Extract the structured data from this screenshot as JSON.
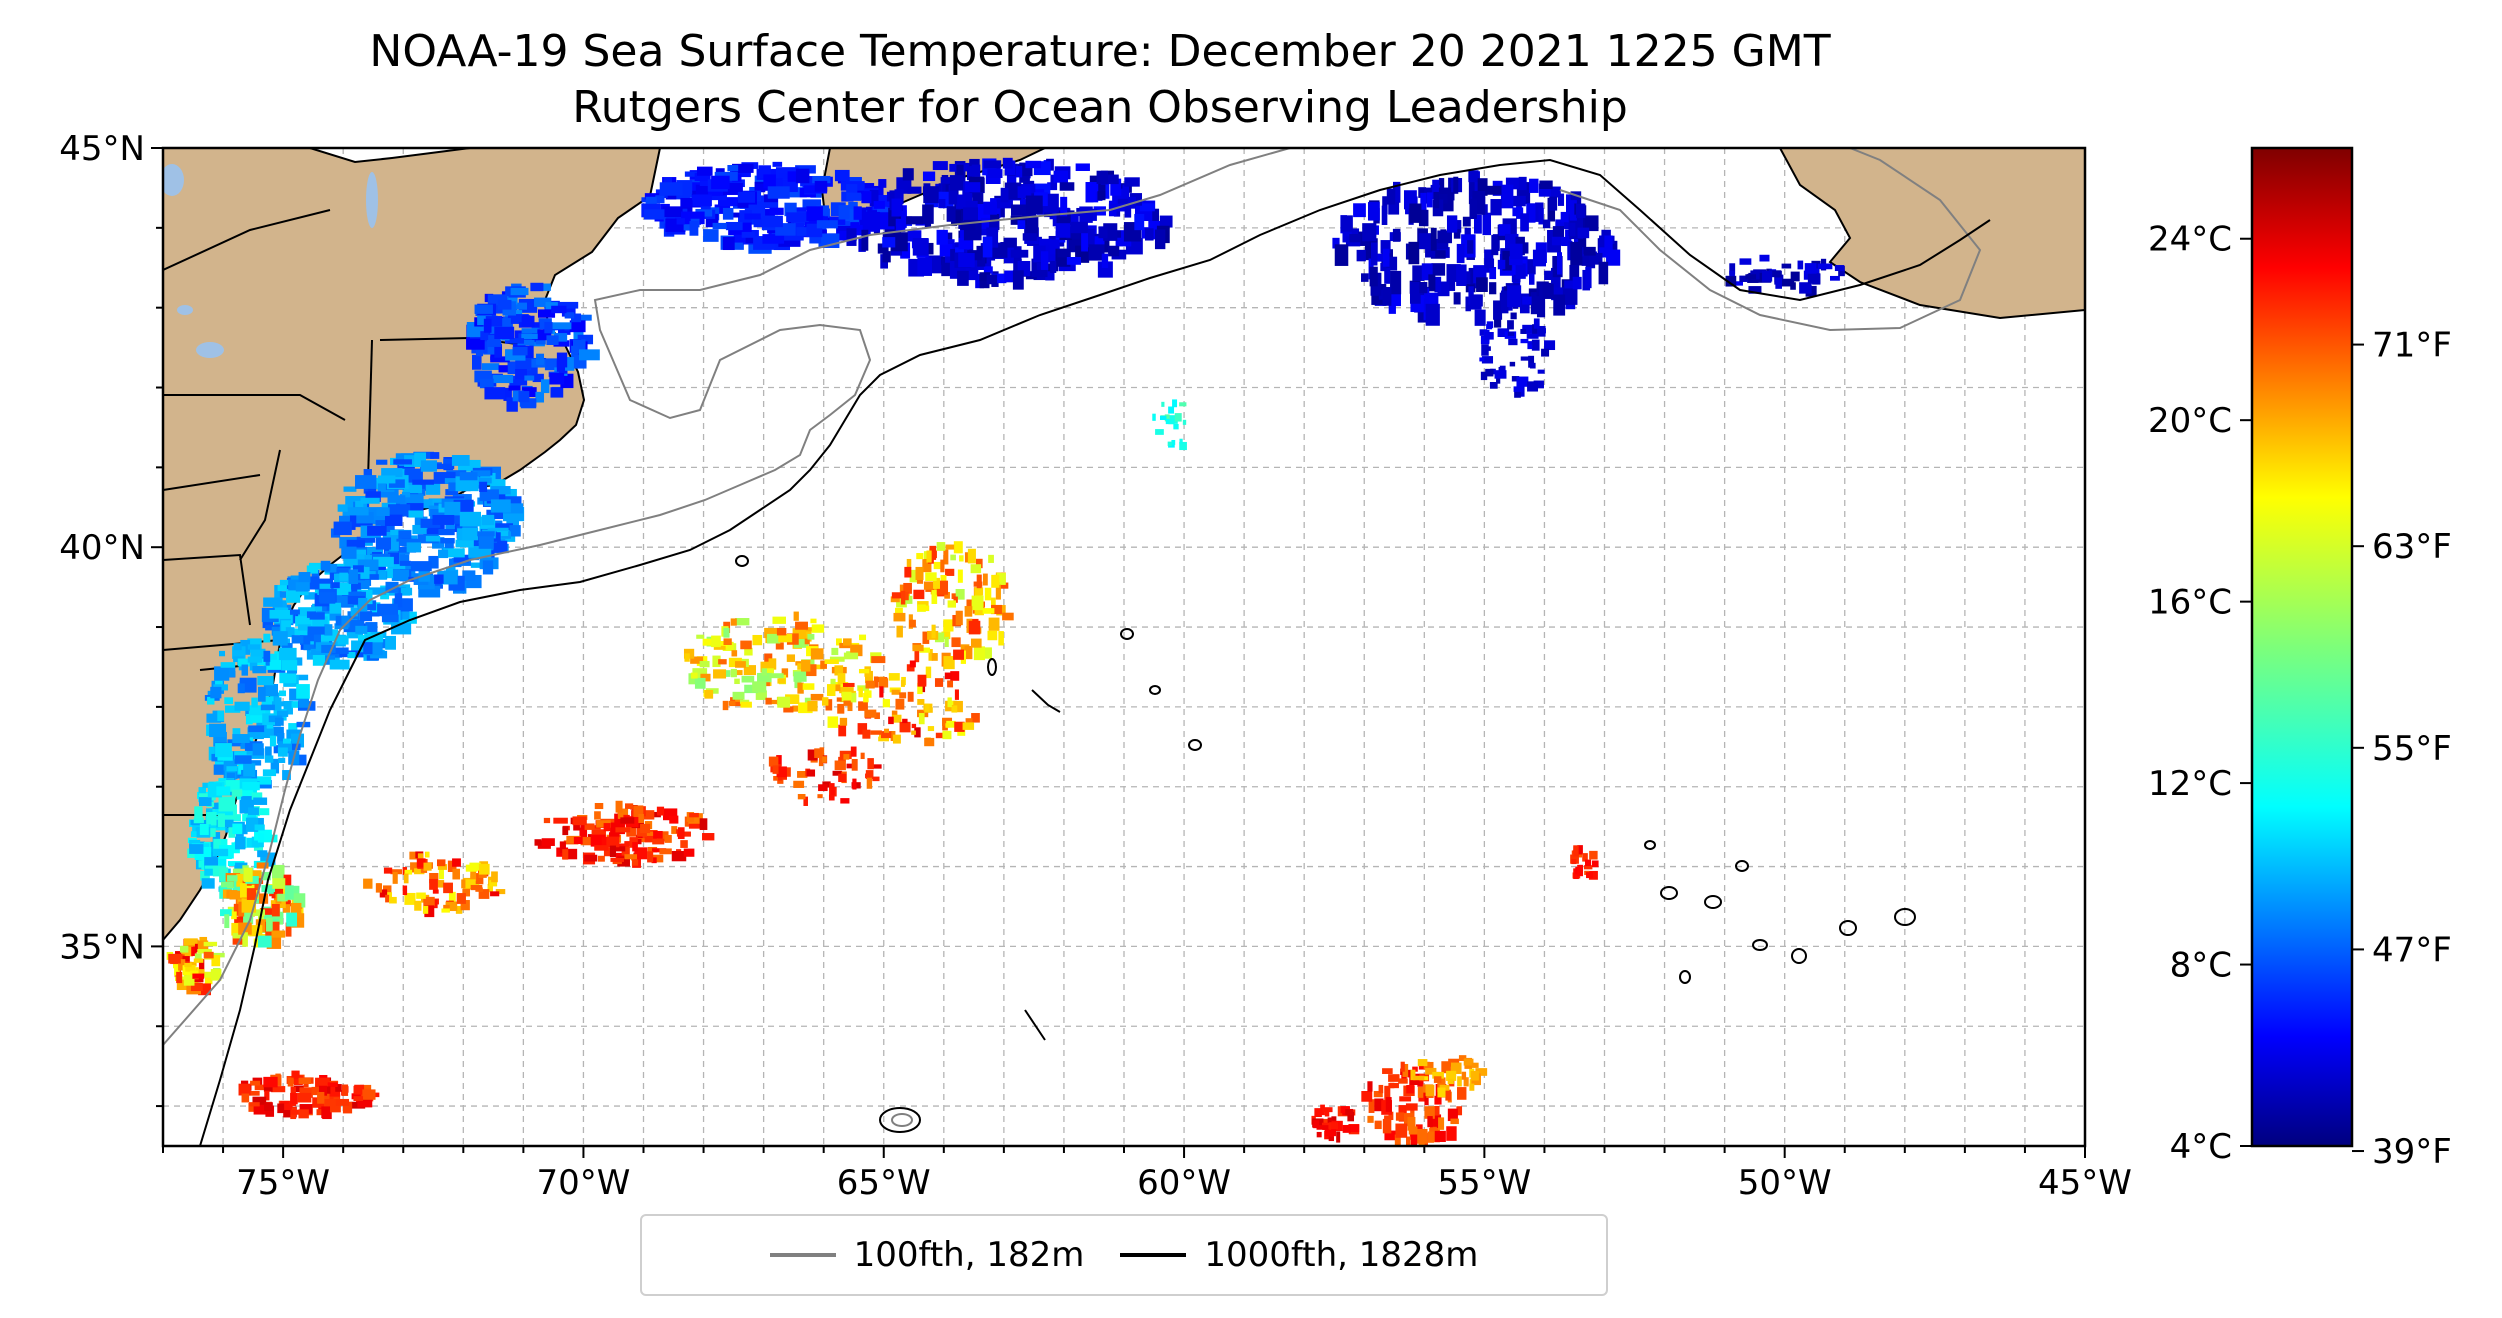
{
  "title": {
    "line1": "NOAA-19 Sea Surface Temperature: December 20 2021 1225 GMT",
    "line2": "Rutgers Center for Ocean Observing Leadership"
  },
  "map": {
    "lon_range": [
      -77,
      -45
    ],
    "lat_range": [
      32.5,
      45
    ],
    "lon_ticks": [
      -75,
      -70,
      -65,
      -60,
      -55,
      -50,
      -45
    ],
    "lon_tick_labels": [
      "75°W",
      "70°W",
      "65°W",
      "60°W",
      "55°W",
      "50°W",
      "45°W"
    ],
    "lat_ticks": [
      35,
      40,
      45
    ],
    "lat_tick_labels": [
      "35°N",
      "40°N",
      "45°N"
    ],
    "gridlines": true,
    "land_color": "#d2b48c",
    "lake_color": "#9fc1e6"
  },
  "colorbar": {
    "celsius_ticks": [
      4,
      8,
      12,
      16,
      20,
      24
    ],
    "celsius_labels": [
      "4°C",
      "8°C",
      "12°C",
      "16°C",
      "20°C",
      "24°C"
    ],
    "fahrenheit_ticks": [
      39,
      47,
      55,
      63,
      71
    ],
    "fahrenheit_labels": [
      "39°F",
      "47°F",
      "55°F",
      "63°F",
      "71°F"
    ],
    "range_c": [
      4,
      26
    ],
    "colormap": "jet"
  },
  "legend": {
    "items": [
      {
        "label": "100fth, 182m",
        "color": "#808080"
      },
      {
        "label": "1000fth, 1828m",
        "color": "#000000"
      }
    ]
  }
}
